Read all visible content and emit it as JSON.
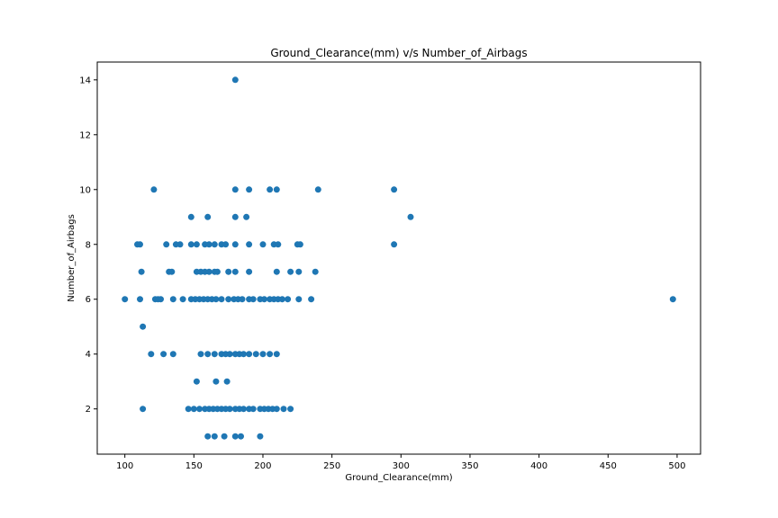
{
  "chart_data": {
    "type": "scatter",
    "title": "Ground_Clearance(mm) v/s Number_of_Airbags",
    "xlabel": "Ground_Clearance(mm)",
    "ylabel": "Number_of_Airbags",
    "xlim": [
      80,
      517
    ],
    "ylim": [
      0.35,
      14.65
    ],
    "xticks": [
      100,
      150,
      200,
      250,
      300,
      350,
      400,
      450,
      500
    ],
    "yticks": [
      2,
      4,
      6,
      8,
      10,
      12,
      14
    ],
    "grid": false,
    "marker_color": "#1f77b4",
    "points": [
      {
        "x": 180,
        "y": 14
      },
      {
        "x": 121,
        "y": 10
      },
      {
        "x": 180,
        "y": 10
      },
      {
        "x": 190,
        "y": 10
      },
      {
        "x": 205,
        "y": 10
      },
      {
        "x": 210,
        "y": 10
      },
      {
        "x": 240,
        "y": 10
      },
      {
        "x": 295,
        "y": 10
      },
      {
        "x": 148,
        "y": 9
      },
      {
        "x": 160,
        "y": 9
      },
      {
        "x": 180,
        "y": 9
      },
      {
        "x": 188,
        "y": 9
      },
      {
        "x": 307,
        "y": 9
      },
      {
        "x": 109,
        "y": 8
      },
      {
        "x": 111,
        "y": 8
      },
      {
        "x": 130,
        "y": 8
      },
      {
        "x": 137,
        "y": 8
      },
      {
        "x": 140,
        "y": 8
      },
      {
        "x": 148,
        "y": 8
      },
      {
        "x": 152,
        "y": 8
      },
      {
        "x": 158,
        "y": 8
      },
      {
        "x": 161,
        "y": 8
      },
      {
        "x": 165,
        "y": 8
      },
      {
        "x": 170,
        "y": 8
      },
      {
        "x": 173,
        "y": 8
      },
      {
        "x": 180,
        "y": 8
      },
      {
        "x": 190,
        "y": 8
      },
      {
        "x": 200,
        "y": 8
      },
      {
        "x": 208,
        "y": 8
      },
      {
        "x": 211,
        "y": 8
      },
      {
        "x": 225,
        "y": 8
      },
      {
        "x": 227,
        "y": 8
      },
      {
        "x": 295,
        "y": 8
      },
      {
        "x": 112,
        "y": 7
      },
      {
        "x": 132,
        "y": 7
      },
      {
        "x": 134,
        "y": 7
      },
      {
        "x": 152,
        "y": 7
      },
      {
        "x": 155,
        "y": 7
      },
      {
        "x": 158,
        "y": 7
      },
      {
        "x": 161,
        "y": 7
      },
      {
        "x": 165,
        "y": 7
      },
      {
        "x": 167,
        "y": 7
      },
      {
        "x": 175,
        "y": 7
      },
      {
        "x": 180,
        "y": 7
      },
      {
        "x": 190,
        "y": 7
      },
      {
        "x": 210,
        "y": 7
      },
      {
        "x": 220,
        "y": 7
      },
      {
        "x": 226,
        "y": 7
      },
      {
        "x": 238,
        "y": 7
      },
      {
        "x": 100,
        "y": 6
      },
      {
        "x": 111,
        "y": 6
      },
      {
        "x": 122,
        "y": 6
      },
      {
        "x": 124,
        "y": 6
      },
      {
        "x": 126,
        "y": 6
      },
      {
        "x": 135,
        "y": 6
      },
      {
        "x": 142,
        "y": 6
      },
      {
        "x": 148,
        "y": 6
      },
      {
        "x": 151,
        "y": 6
      },
      {
        "x": 154,
        "y": 6
      },
      {
        "x": 157,
        "y": 6
      },
      {
        "x": 160,
        "y": 6
      },
      {
        "x": 163,
        "y": 6
      },
      {
        "x": 166,
        "y": 6
      },
      {
        "x": 170,
        "y": 6
      },
      {
        "x": 175,
        "y": 6
      },
      {
        "x": 179,
        "y": 6
      },
      {
        "x": 182,
        "y": 6
      },
      {
        "x": 185,
        "y": 6
      },
      {
        "x": 190,
        "y": 6
      },
      {
        "x": 193,
        "y": 6
      },
      {
        "x": 198,
        "y": 6
      },
      {
        "x": 201,
        "y": 6
      },
      {
        "x": 205,
        "y": 6
      },
      {
        "x": 208,
        "y": 6
      },
      {
        "x": 211,
        "y": 6
      },
      {
        "x": 214,
        "y": 6
      },
      {
        "x": 218,
        "y": 6
      },
      {
        "x": 226,
        "y": 6
      },
      {
        "x": 235,
        "y": 6
      },
      {
        "x": 497,
        "y": 6
      },
      {
        "x": 113,
        "y": 5
      },
      {
        "x": 119,
        "y": 4
      },
      {
        "x": 128,
        "y": 4
      },
      {
        "x": 135,
        "y": 4
      },
      {
        "x": 155,
        "y": 4
      },
      {
        "x": 160,
        "y": 4
      },
      {
        "x": 165,
        "y": 4
      },
      {
        "x": 170,
        "y": 4
      },
      {
        "x": 173,
        "y": 4
      },
      {
        "x": 176,
        "y": 4
      },
      {
        "x": 180,
        "y": 4
      },
      {
        "x": 183,
        "y": 4
      },
      {
        "x": 186,
        "y": 4
      },
      {
        "x": 190,
        "y": 4
      },
      {
        "x": 195,
        "y": 4
      },
      {
        "x": 200,
        "y": 4
      },
      {
        "x": 205,
        "y": 4
      },
      {
        "x": 210,
        "y": 4
      },
      {
        "x": 152,
        "y": 3
      },
      {
        "x": 166,
        "y": 3
      },
      {
        "x": 174,
        "y": 3
      },
      {
        "x": 113,
        "y": 2
      },
      {
        "x": 146,
        "y": 2
      },
      {
        "x": 150,
        "y": 2
      },
      {
        "x": 154,
        "y": 2
      },
      {
        "x": 158,
        "y": 2
      },
      {
        "x": 161,
        "y": 2
      },
      {
        "x": 164,
        "y": 2
      },
      {
        "x": 167,
        "y": 2
      },
      {
        "x": 170,
        "y": 2
      },
      {
        "x": 173,
        "y": 2
      },
      {
        "x": 176,
        "y": 2
      },
      {
        "x": 180,
        "y": 2
      },
      {
        "x": 183,
        "y": 2
      },
      {
        "x": 186,
        "y": 2
      },
      {
        "x": 190,
        "y": 2
      },
      {
        "x": 193,
        "y": 2
      },
      {
        "x": 198,
        "y": 2
      },
      {
        "x": 201,
        "y": 2
      },
      {
        "x": 204,
        "y": 2
      },
      {
        "x": 207,
        "y": 2
      },
      {
        "x": 210,
        "y": 2
      },
      {
        "x": 215,
        "y": 2
      },
      {
        "x": 220,
        "y": 2
      },
      {
        "x": 160,
        "y": 1
      },
      {
        "x": 165,
        "y": 1
      },
      {
        "x": 172,
        "y": 1
      },
      {
        "x": 180,
        "y": 1
      },
      {
        "x": 184,
        "y": 1
      },
      {
        "x": 198,
        "y": 1
      }
    ]
  }
}
